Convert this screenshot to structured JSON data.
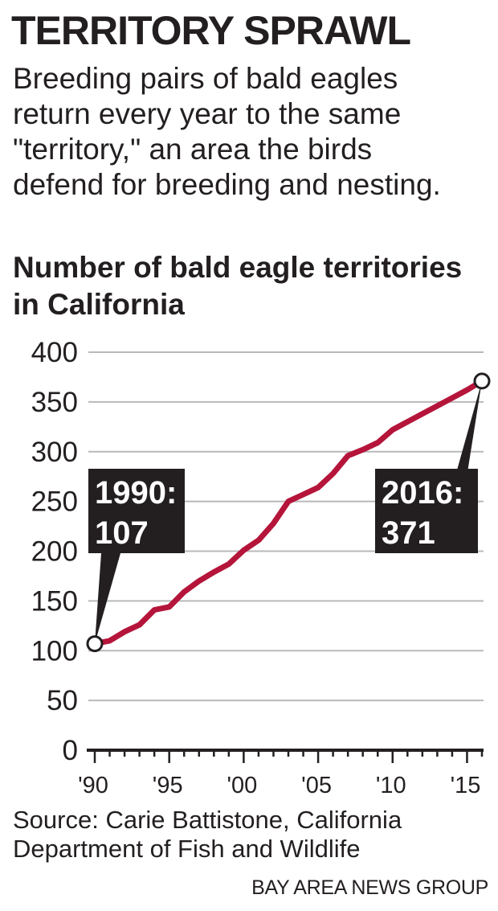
{
  "header": {
    "title": "TERRITORY SPRAWL",
    "subtitle": "Breeding pairs of bald eagles return every year to the same \"territory,\" an area the birds defend for breeding and nesting."
  },
  "colors": {
    "line": "#b5153a",
    "grid": "#b9b9b9",
    "text": "#231f20",
    "callout_bg": "#231f20"
  },
  "chart_data": {
    "type": "line",
    "title": "Number of bald eagle territories in California",
    "xlabel": "",
    "ylabel": "",
    "x": [
      1990,
      1991,
      1992,
      1993,
      1994,
      1995,
      1996,
      1997,
      1998,
      1999,
      2000,
      2001,
      2002,
      2003,
      2004,
      2005,
      2006,
      2007,
      2008,
      2009,
      2010,
      2011,
      2012,
      2013,
      2014,
      2015,
      2016
    ],
    "values": [
      107,
      110,
      119,
      126,
      141,
      144,
      159,
      170,
      179,
      187,
      201,
      211,
      228,
      250,
      257,
      264,
      278,
      296,
      302,
      309,
      322,
      330,
      338,
      346,
      354,
      362,
      371
    ],
    "xlim": [
      1990,
      2016
    ],
    "ylim": [
      0,
      400
    ],
    "x_ticks": [
      1990,
      1995,
      2000,
      2005,
      2010,
      2015
    ],
    "x_tick_labels": [
      "'90",
      "'95",
      "'00",
      "'05",
      "'10",
      "'15"
    ],
    "y_ticks": [
      0,
      50,
      100,
      150,
      200,
      250,
      300,
      350,
      400
    ],
    "y_tick_labels": [
      "0",
      "50",
      "100",
      "150",
      "200",
      "250",
      "300",
      "350",
      "400"
    ],
    "grid": true,
    "annotations": [
      {
        "x": 1990,
        "y": 107,
        "line1": "1990:",
        "line2": "107"
      },
      {
        "x": 2016,
        "y": 371,
        "line1": "2016:",
        "line2": "371"
      }
    ]
  },
  "footer": {
    "source": "Source: Carie Battistone, California Department of Fish and Wildlife",
    "credit": "BAY AREA NEWS GROUP"
  }
}
